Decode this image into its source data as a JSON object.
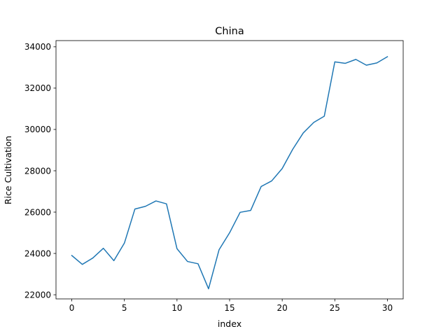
{
  "chart_data": {
    "type": "line",
    "title": "China",
    "xlabel": "index",
    "ylabel": "Rice Cultivation",
    "xlim": [
      -1.5,
      31.5
    ],
    "ylim": [
      21800,
      34300
    ],
    "x_ticks": [
      0,
      5,
      10,
      15,
      20,
      25,
      30
    ],
    "y_ticks": [
      22000,
      24000,
      26000,
      28000,
      30000,
      32000,
      34000
    ],
    "grid": false,
    "legend": "none",
    "series": [
      {
        "color": "#1f77b4",
        "x": [
          0,
          1,
          2,
          3,
          4,
          5,
          6,
          7,
          8,
          9,
          10,
          11,
          12,
          13,
          14,
          15,
          16,
          17,
          18,
          19,
          20,
          21,
          22,
          23,
          24,
          25,
          26,
          27,
          28,
          29,
          30
        ],
        "values": [
          23900,
          23470,
          23780,
          24250,
          23650,
          24500,
          26150,
          26280,
          26540,
          26400,
          24230,
          23610,
          23500,
          22290,
          24180,
          25000,
          25990,
          26080,
          27240,
          27510,
          28110,
          29040,
          29830,
          30340,
          30640,
          33270,
          33200,
          33390,
          33110,
          33220,
          33520
        ]
      }
    ]
  }
}
